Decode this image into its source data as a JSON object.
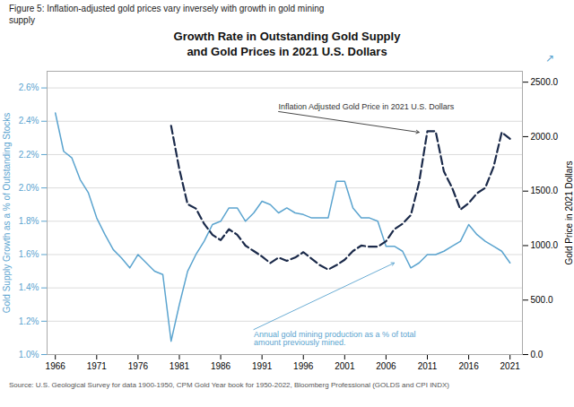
{
  "chart_data": {
    "type": "line",
    "title": "Growth Rate in Outstanding Gold Supply\nand Gold Prices in 2021 U.S. Dollars",
    "subtitle": "Figure 5: Inflation-adjusted gold prices vary inversely with growth in gold mining\nsupply",
    "caption": "Source: U.S. Geological Survey for data 1900-1950, CPM Gold Year book for 1950-2022, Bloomberg Professional (GOLDS and CPI INDX)",
    "ylabel": "Gold Supply Growth as a % of Outstanding Stocks",
    "y2label": "Gold Price in 2021 Dollars",
    "xlim": [
      1965,
      2022.5
    ],
    "xticks": [
      1966,
      1971,
      1976,
      1981,
      1986,
      1991,
      1996,
      2001,
      2006,
      2011,
      2016,
      2021
    ],
    "ylim": [
      0.01,
      0.027
    ],
    "yticks": [
      {
        "value": 0.01,
        "label": "1.0%"
      },
      {
        "value": 0.012,
        "label": "1.2%"
      },
      {
        "value": 0.014,
        "label": "1.4%"
      },
      {
        "value": 0.016,
        "label": "1.6%"
      },
      {
        "value": 0.018,
        "label": "1.8%"
      },
      {
        "value": 0.02,
        "label": "2.0%"
      },
      {
        "value": 0.022,
        "label": "2.2%"
      },
      {
        "value": 0.024,
        "label": "2.4%"
      },
      {
        "value": 0.026,
        "label": "2.6%"
      }
    ],
    "y2lim": [
      0,
      2600
    ],
    "y2ticks": [
      {
        "value": 0,
        "label": "0.0"
      },
      {
        "value": 500,
        "label": "500.0"
      },
      {
        "value": 1000,
        "label": "1000.0"
      },
      {
        "value": 1500,
        "label": "1500.0"
      },
      {
        "value": 2000,
        "label": "2000.0"
      },
      {
        "value": 2500,
        "label": "2500.0"
      }
    ],
    "grid": true,
    "series": [
      {
        "x": [
          1966,
          1967,
          1968,
          1969,
          1970,
          1971,
          1972,
          1973,
          1974,
          1975,
          1976,
          1977,
          1978,
          1979,
          1980,
          1981,
          1982,
          1983,
          1984,
          1985,
          1986,
          1987,
          1988,
          1989,
          1990,
          1991,
          1992,
          1993,
          1994,
          1995,
          1996,
          1997,
          1998,
          1999,
          2000,
          2001,
          2002,
          2003,
          2004,
          2005,
          2006,
          2007,
          2008,
          2009,
          2010,
          2011,
          2012,
          2013,
          2014,
          2015,
          2016,
          2017,
          2018,
          2019,
          2020,
          2021
        ],
        "values": [
          0.0245,
          0.0222,
          0.0218,
          0.0205,
          0.0197,
          0.0182,
          0.0172,
          0.0163,
          0.0158,
          0.0152,
          0.016,
          0.0155,
          0.015,
          0.0148,
          0.0108,
          0.013,
          0.015,
          0.016,
          0.0168,
          0.0178,
          0.018,
          0.0188,
          0.0188,
          0.018,
          0.0185,
          0.0192,
          0.019,
          0.0185,
          0.0188,
          0.0185,
          0.0184,
          0.0182,
          0.0182,
          0.0182,
          0.0204,
          0.0204,
          0.0188,
          0.0182,
          0.0182,
          0.018,
          0.0165,
          0.0165,
          0.0162,
          0.0152,
          0.0155,
          0.016,
          0.016,
          0.0162,
          0.0165,
          0.0168,
          0.0178,
          0.0172,
          0.0168,
          0.0165,
          0.0162,
          0.0155
        ],
        "color": "#5BA4CF",
        "line_style": "solid",
        "axis": "y"
      },
      {
        "x": [
          1980,
          1981,
          1982,
          1983,
          1984,
          1985,
          1986,
          1987,
          1988,
          1989,
          1990,
          1991,
          1992,
          1993,
          1994,
          1995,
          1996,
          1997,
          1998,
          1999,
          2000,
          2001,
          2002,
          2003,
          2004,
          2005,
          2006,
          2007,
          2008,
          2009,
          2010,
          2011,
          2012,
          2013,
          2014,
          2015,
          2016,
          2017,
          2018,
          2019,
          2020,
          2021
        ],
        "values": [
          2100,
          1700,
          1380,
          1340,
          1200,
          1100,
          1050,
          1150,
          1100,
          1000,
          950,
          900,
          840,
          890,
          860,
          890,
          940,
          880,
          820,
          780,
          820,
          870,
          950,
          1000,
          990,
          990,
          1040,
          1150,
          1200,
          1280,
          1580,
          2050,
          2050,
          1680,
          1530,
          1330,
          1390,
          1480,
          1530,
          1720,
          2040,
          1980
        ],
        "color": "#1B2A4A",
        "line_style": "dashed",
        "axis": "y2"
      }
    ],
    "annotations": [
      {
        "text": "Inflation Adjusted Gold Price in 2021 U.S. Dollars",
        "x": 2010,
        "y": 2040,
        "text_x": 1993,
        "text_y": 2230,
        "axis": "y2"
      },
      {
        "text": "Annual gold mining production as a % of total\namount previously mined.",
        "x": 2007,
        "y": 0.0155,
        "text_x": 1990,
        "text_y": 0.0115,
        "axis": "y"
      },
      {
        "text": "↗"
      }
    ]
  }
}
